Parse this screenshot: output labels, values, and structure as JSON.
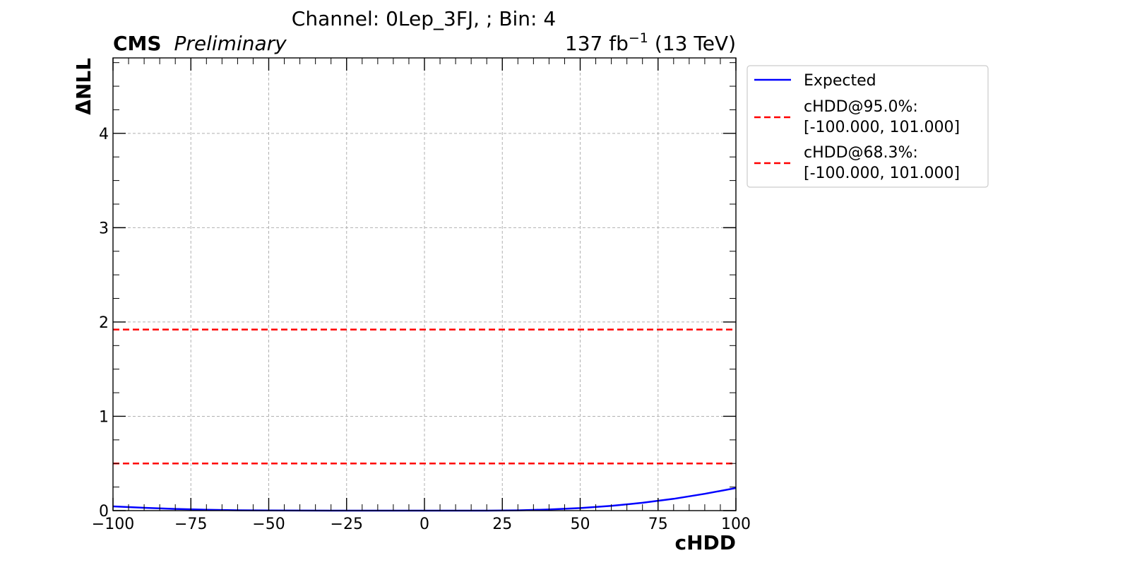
{
  "chart_data": {
    "type": "line",
    "title": "Channel: 0Lep_3FJ, ; Bin: 4",
    "cms_label": "CMS",
    "cms_sublabel": "Preliminary",
    "lumi_prefix": "137 fb",
    "lumi_exponent": "−1",
    "lumi_suffix": "(13 TeV)",
    "xlabel": "cHDD",
    "ylabel": "ΔNLL",
    "xlim": [
      -100,
      100
    ],
    "ylim": [
      0,
      4.8
    ],
    "x_ticks": [
      -100,
      -75,
      -50,
      -25,
      0,
      25,
      50,
      75,
      100
    ],
    "x_tick_labels": [
      "−100",
      "−75",
      "−50",
      "−25",
      "0",
      "25",
      "50",
      "75",
      "100"
    ],
    "y_ticks": [
      0,
      1,
      2,
      3,
      4
    ],
    "y_tick_labels": [
      "0",
      "1",
      "2",
      "3",
      "4"
    ],
    "grid": true,
    "legend_position": "outside-right-top",
    "series": [
      {
        "name": "Expected",
        "style": "solid",
        "color": "#0000ff",
        "x": [
          -100,
          -90,
          -80,
          -70,
          -60,
          -50,
          -40,
          -30,
          -20,
          -10,
          0,
          10,
          20,
          30,
          40,
          50,
          60,
          70,
          80,
          90,
          100
        ],
        "y": [
          0.045,
          0.03,
          0.018,
          0.009,
          0.004,
          0.0015,
          0.0005,
          0.0,
          0.0,
          0.0,
          0.0,
          0.0,
          0.0,
          0.003,
          0.012,
          0.027,
          0.05,
          0.083,
          0.125,
          0.178,
          0.24
        ]
      }
    ],
    "reference_lines": [
      {
        "name": "cHDD@95.0%:",
        "interval": "[-100.000, 101.000]",
        "y": 1.92,
        "style": "dashed",
        "color": "#ff0000"
      },
      {
        "name": "cHDD@68.3%:",
        "interval": "[-100.000, 101.000]",
        "y": 0.5,
        "style": "dashed",
        "color": "#ff0000"
      }
    ]
  }
}
